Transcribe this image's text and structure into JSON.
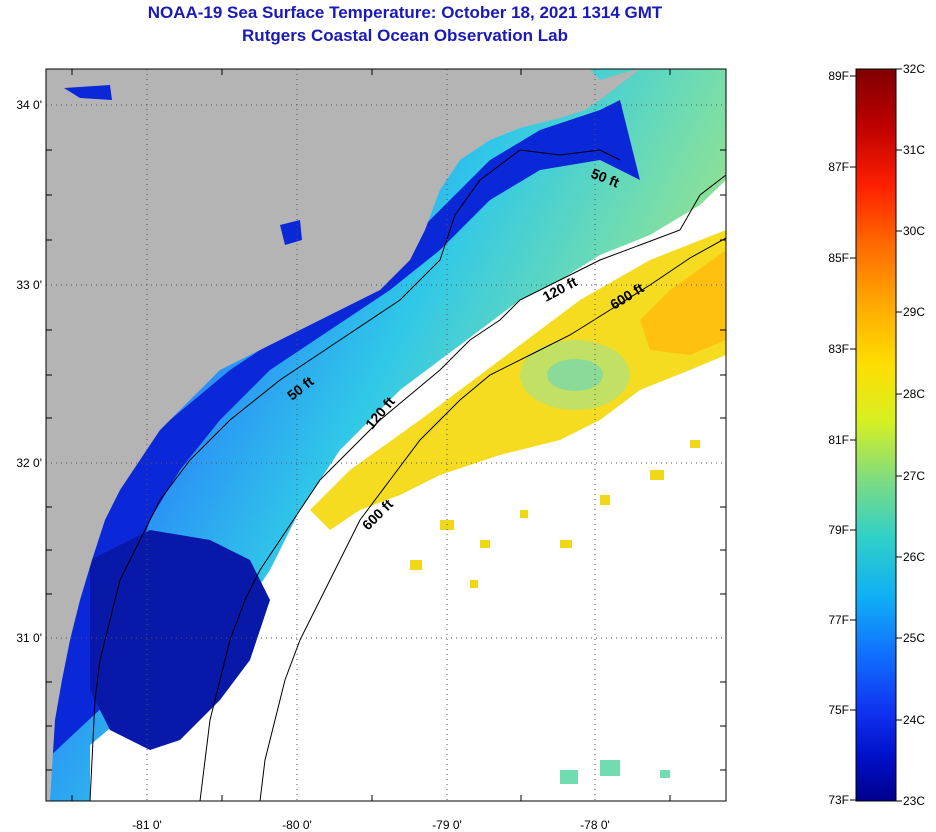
{
  "header": {
    "title": "NOAA-19 Sea Surface Temperature:  October 18, 2021 1314 GMT",
    "subtitle": "Rutgers Coastal Ocean Observation Lab"
  },
  "map": {
    "lat_labels": [
      "34 0'",
      "33 0'",
      "32 0'",
      "31 0'"
    ],
    "lon_labels": [
      "-81 0'",
      "-80 0'",
      "-79 0'",
      "-78 0'"
    ],
    "contour_labels": [
      {
        "text": "50 ft"
      },
      {
        "text": "120 ft"
      },
      {
        "text": "600 ft"
      },
      {
        "text": "50 ft"
      },
      {
        "text": "120 ft"
      },
      {
        "text": "600 ft"
      }
    ]
  },
  "colorbar": {
    "fahrenheit": [
      "89F",
      "87F",
      "85F",
      "83F",
      "81F",
      "79F",
      "77F",
      "75F",
      "73F"
    ],
    "celsius": [
      "32C",
      "31C",
      "30C",
      "29C",
      "28C",
      "27C",
      "26C",
      "25C",
      "24C",
      "23C"
    ],
    "colors_top_to_bottom": [
      "#800000",
      "#b40000",
      "#e40000",
      "#ff3000",
      "#ff7000",
      "#ffa800",
      "#ffdc00",
      "#e6f000",
      "#b0e040",
      "#70d890",
      "#30d0c0",
      "#10b8f0",
      "#1080ff",
      "#1040ff",
      "#0010e0",
      "#00008c"
    ]
  },
  "colors": {
    "land": "#b4b4b4",
    "title": "#1a1ab8",
    "nodata": "#ffffff"
  }
}
